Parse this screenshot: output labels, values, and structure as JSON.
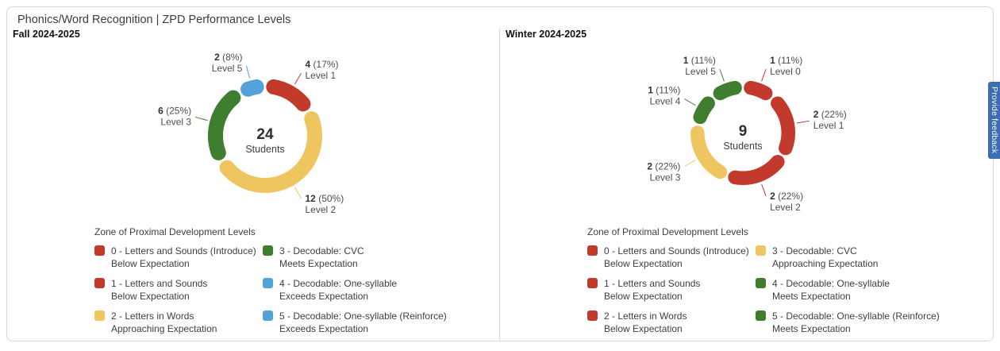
{
  "header": {
    "title": "Phonics/Word Recognition | ZPD Performance Levels"
  },
  "feedback_tab": {
    "label": "Provide feedback",
    "color": "#3d6eb5"
  },
  "colors": {
    "red": "#c13a2b",
    "yellow": "#efc55f",
    "green": "#3f7e2e",
    "blue": "#52a1d8"
  },
  "chart_data": [
    {
      "type": "pie",
      "donut": true,
      "title": "Fall 2024-2025",
      "center_value": "24",
      "center_label": "Students",
      "total_students": 24,
      "legend_position": "bottom",
      "slices": [
        {
          "label": "Level 1",
          "count": 4,
          "percent": "17%",
          "color_key": "red"
        },
        {
          "label": "Level 2",
          "count": 12,
          "percent": "50%",
          "color_key": "yellow"
        },
        {
          "label": "Level 3",
          "count": 6,
          "percent": "25%",
          "color_key": "green"
        },
        {
          "label": "Level 5",
          "count": 2,
          "percent": "8%",
          "color_key": "blue"
        }
      ],
      "legend": {
        "title": "Zone of Proximal Development Levels",
        "items": [
          {
            "color_key": "red",
            "name": "0 - Letters and Sounds (Introduce)",
            "status": "Below Expectation"
          },
          {
            "color_key": "red",
            "name": "1 - Letters and Sounds",
            "status": "Below Expectation"
          },
          {
            "color_key": "yellow",
            "name": "2 - Letters in Words",
            "status": "Approaching Expectation"
          },
          {
            "color_key": "green",
            "name": "3 - Decodable: CVC",
            "status": "Meets Expectation"
          },
          {
            "color_key": "blue",
            "name": "4 - Decodable: One-syllable",
            "status": "Exceeds Expectation"
          },
          {
            "color_key": "blue",
            "name": "5 - Decodable: One-syllable (Reinforce)",
            "status": "Exceeds Expectation"
          }
        ]
      }
    },
    {
      "type": "pie",
      "donut": true,
      "title": "Winter 2024-2025",
      "center_value": "9",
      "center_label": "Students",
      "total_students": 9,
      "legend_position": "bottom",
      "slices": [
        {
          "label": "Level 0",
          "count": 1,
          "percent": "11%",
          "color_key": "red"
        },
        {
          "label": "Level 1",
          "count": 2,
          "percent": "22%",
          "color_key": "red"
        },
        {
          "label": "Level 2",
          "count": 2,
          "percent": "22%",
          "color_key": "red"
        },
        {
          "label": "Level 3",
          "count": 2,
          "percent": "22%",
          "color_key": "yellow"
        },
        {
          "label": "Level 4",
          "count": 1,
          "percent": "11%",
          "color_key": "green"
        },
        {
          "label": "Level 5",
          "count": 1,
          "percent": "11%",
          "color_key": "green"
        }
      ],
      "legend": {
        "title": "Zone of Proximal Development Levels",
        "items": [
          {
            "color_key": "red",
            "name": "0 - Letters and Sounds (Introduce)",
            "status": "Below Expectation"
          },
          {
            "color_key": "red",
            "name": "1 - Letters and Sounds",
            "status": "Below Expectation"
          },
          {
            "color_key": "red",
            "name": "2 - Letters in Words",
            "status": "Below Expectation"
          },
          {
            "color_key": "yellow",
            "name": "3 - Decodable: CVC",
            "status": "Approaching Expectation"
          },
          {
            "color_key": "green",
            "name": "4 - Decodable: One-syllable",
            "status": "Meets Expectation"
          },
          {
            "color_key": "green",
            "name": "5 - Decodable: One-syllable (Reinforce)",
            "status": "Meets Expectation"
          }
        ]
      }
    }
  ]
}
